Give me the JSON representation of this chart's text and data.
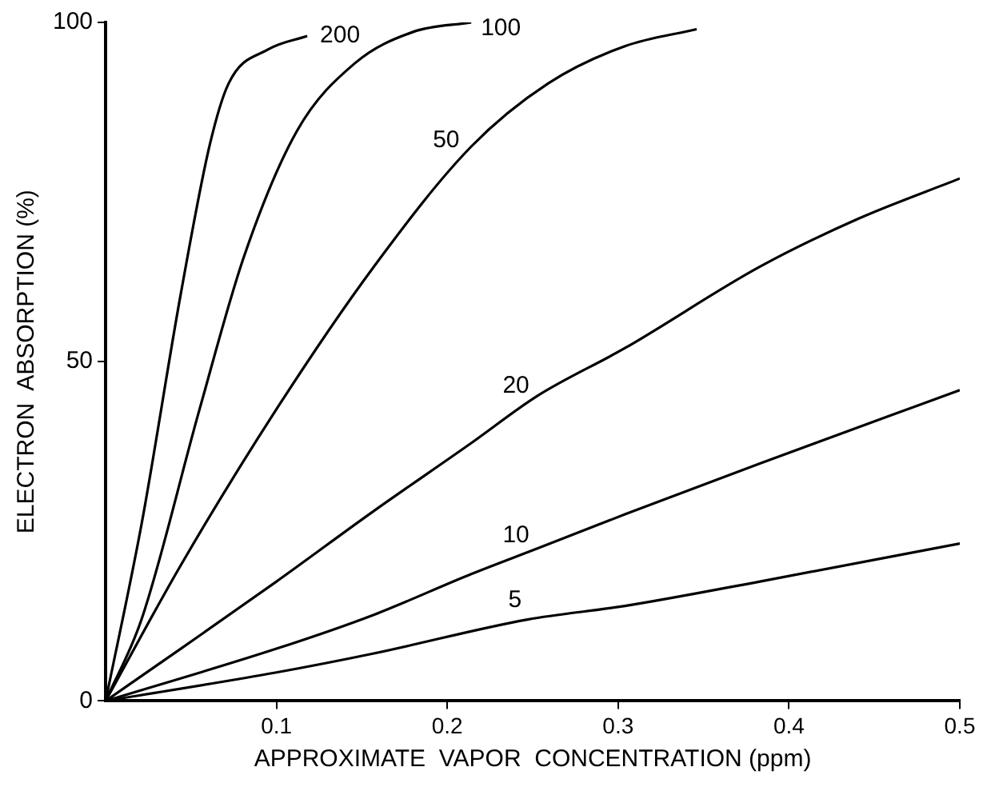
{
  "chart_data": {
    "type": "line",
    "xlabel": "APPROXIMATE  VAPOR  CONCENTRATION (ppm)",
    "ylabel": "ELECTRON  ABSORPTION (%)",
    "xlim": [
      0,
      0.5
    ],
    "xticks": [
      0.1,
      0.2,
      0.3,
      0.4,
      0.5
    ],
    "ylim": [
      0,
      100
    ],
    "yticks": [
      0,
      50,
      100
    ],
    "grid": false,
    "legend": false,
    "marker": "none",
    "line_style": "solid",
    "series": [
      {
        "name": "200",
        "color": "#000000",
        "x": [
          0,
          0.021,
          0.044,
          0.061,
          0.072,
          0.095,
          0.118
        ],
        "values": [
          0,
          26,
          60,
          82,
          91,
          96,
          98
        ]
      },
      {
        "name": "100",
        "color": "#000000",
        "x": [
          0,
          0.021,
          0.055,
          0.081,
          0.112,
          0.146,
          0.18,
          0.214
        ],
        "values": [
          0,
          12,
          43,
          65.5,
          84,
          94,
          98.6,
          100
        ]
      },
      {
        "name": "50",
        "color": "#000000",
        "x": [
          0,
          0.044,
          0.1,
          0.157,
          0.214,
          0.259,
          0.304,
          0.346
        ],
        "values": [
          0,
          20,
          43,
          64,
          81.7,
          91,
          96.5,
          99
        ]
      },
      {
        "name": "20",
        "color": "#000000",
        "x": [
          0,
          0.044,
          0.1,
          0.157,
          0.214,
          0.253,
          0.304,
          0.383,
          0.44,
          0.5
        ],
        "values": [
          0,
          7.7,
          17.6,
          28,
          38,
          45,
          52,
          64,
          71,
          77
        ]
      },
      {
        "name": "10",
        "color": "#000000",
        "x": [
          0,
          0.1,
          0.157,
          0.214,
          0.253,
          0.304,
          0.383,
          0.5
        ],
        "values": [
          0,
          7.7,
          12.7,
          18.7,
          22.5,
          27.5,
          35,
          45.8
        ]
      },
      {
        "name": "5",
        "color": "#000000",
        "x": [
          0,
          0.1,
          0.157,
          0.247,
          0.304,
          0.383,
          0.5
        ],
        "values": [
          0,
          4.2,
          7,
          12,
          14,
          17.6,
          23.2
        ]
      }
    ]
  }
}
